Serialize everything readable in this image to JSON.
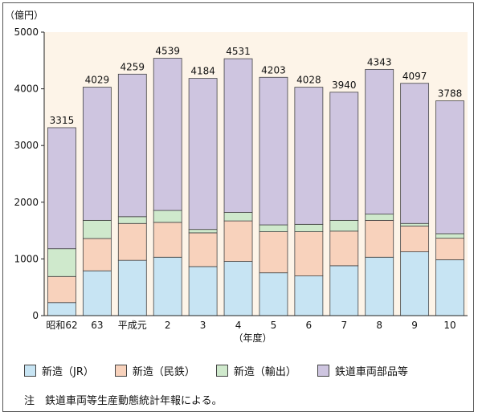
{
  "chart_data": {
    "type": "bar",
    "stacked": true,
    "yunit": "（億円）",
    "xunit": "（年度）",
    "ylim": [
      0,
      5000
    ],
    "yticks": [
      0,
      1000,
      2000,
      3000,
      4000,
      5000
    ],
    "categories": [
      "昭和62",
      "63",
      "平成元",
      "2",
      "3",
      "4",
      "5",
      "6",
      "7",
      "8",
      "9",
      "10"
    ],
    "totals": [
      3315,
      4029,
      4259,
      4539,
      4184,
      4531,
      4203,
      4028,
      3940,
      4343,
      4097,
      3788
    ],
    "series": [
      {
        "name": "新造（JR）",
        "color": "#c7e4f3",
        "values": [
          230,
          790,
          975,
          1030,
          865,
          955,
          755,
          700,
          880,
          1030,
          1125,
          985
        ]
      },
      {
        "name": "新造（民鉄）",
        "color": "#f8d2bc",
        "values": [
          460,
          570,
          650,
          615,
          595,
          715,
          725,
          780,
          610,
          650,
          455,
          380
        ]
      },
      {
        "name": "新造（輸出）",
        "color": "#cfe9cc",
        "values": [
          490,
          320,
          120,
          210,
          60,
          150,
          120,
          130,
          190,
          110,
          45,
          80
        ]
      },
      {
        "name": "鉄道車両部品等",
        "color": "#cec5e0",
        "values": [
          2135,
          2349,
          2514,
          2684,
          2664,
          2711,
          2603,
          2418,
          2260,
          2553,
          2472,
          2343
        ]
      }
    ],
    "background": "#fdf4e8"
  },
  "note": "注　鉄道車両等生産動態統計年報による。"
}
